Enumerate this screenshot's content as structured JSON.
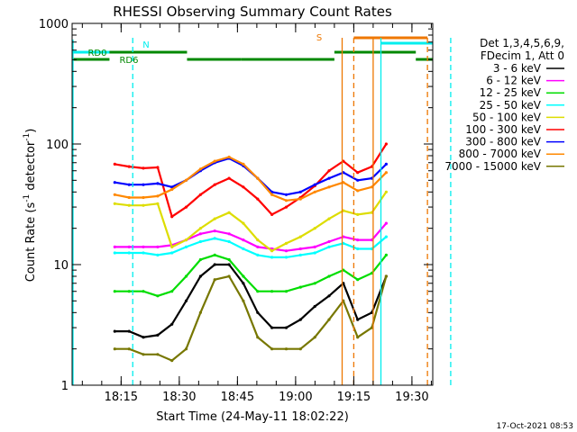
{
  "chart_data": {
    "type": "line",
    "title": "RHESSI Observing Summary Count Rates",
    "xlabel": "Start Time (24-May-11 18:02:22)",
    "ylabel_main": "Count Rate (s",
    "ylabel_sup1": "-1",
    "ylabel_mid": " detector",
    "ylabel_sup2": "-1",
    "ylabel_end": ")",
    "y_scale": "log",
    "ylim": [
      1,
      1000
    ],
    "xlim_minutes_after_start": [
      0,
      93
    ],
    "y_ticks": [
      {
        "value": 1,
        "label": "1"
      },
      {
        "value": 10,
        "label": "10"
      },
      {
        "value": 100,
        "label": "100"
      },
      {
        "value": 1000,
        "label": "1000"
      }
    ],
    "x_ticks": [
      {
        "time": "18:15",
        "label": "18:15"
      },
      {
        "time": "18:30",
        "label": "18:30"
      },
      {
        "time": "18:45",
        "label": "18:45"
      },
      {
        "time": "19:00",
        "label": "19:00"
      },
      {
        "time": "19:15",
        "label": "19:15"
      },
      {
        "time": "19:30",
        "label": "19:30"
      }
    ],
    "legend_header": [
      "Det 1,3,4,5,6,9,",
      "FDecim 1, Att 0"
    ],
    "legend_position": "right",
    "series": [
      {
        "name": "3 - 6 keV",
        "color": "#000000",
        "values": [
          2.8,
          2.8,
          2.5,
          2.6,
          3.2,
          5.0,
          8.0,
          10.0,
          10.0,
          7.0,
          4.0,
          3.0,
          3.0,
          3.5,
          4.5,
          5.5,
          7.0,
          3.5,
          4.0,
          8.0
        ]
      },
      {
        "name": "6 - 12 keV",
        "color": "#ff00ff",
        "values": [
          14.0,
          14.0,
          14.0,
          14.0,
          14.5,
          16.0,
          18.0,
          19.0,
          18.0,
          16.0,
          14.0,
          13.5,
          13.0,
          13.5,
          14.0,
          15.5,
          17.0,
          16.0,
          16.0,
          22.0
        ]
      },
      {
        "name": "12 - 25 keV",
        "color": "#00dd00",
        "values": [
          6.0,
          6.0,
          6.0,
          5.5,
          6.0,
          8.0,
          11.0,
          12.0,
          11.0,
          8.0,
          6.0,
          6.0,
          6.0,
          6.5,
          7.0,
          8.0,
          9.0,
          7.5,
          8.5,
          12.0
        ]
      },
      {
        "name": "25 - 50 keV",
        "color": "#00ffff",
        "values": [
          12.5,
          12.5,
          12.5,
          12.0,
          12.5,
          14.0,
          15.5,
          16.5,
          15.5,
          13.5,
          12.0,
          11.5,
          11.5,
          12.0,
          12.5,
          14.0,
          15.0,
          13.5,
          13.5,
          17.0
        ]
      },
      {
        "name": "50 - 100 keV",
        "color": "#dddd00",
        "values": [
          32.0,
          31.0,
          31.0,
          32.0,
          14.0,
          16.0,
          20.0,
          24.0,
          27.0,
          22.0,
          16.0,
          13.0,
          15.0,
          17.0,
          20.0,
          24.0,
          28.0,
          26.0,
          27.0,
          40.0
        ]
      },
      {
        "name": "100 - 300 keV",
        "color": "#ff0000",
        "values": [
          68.0,
          65.0,
          63.0,
          64.0,
          25.0,
          30.0,
          38.0,
          46.0,
          52.0,
          44.0,
          35.0,
          26.0,
          30.0,
          36.0,
          45.0,
          60.0,
          72.0,
          58.0,
          65.0,
          100.0
        ]
      },
      {
        "name": "300 - 800 keV",
        "color": "#0000ff",
        "values": [
          48.0,
          46.0,
          46.0,
          47.0,
          44.0,
          50.0,
          60.0,
          70.0,
          76.0,
          66.0,
          52.0,
          40.0,
          38.0,
          40.0,
          46.0,
          52.0,
          58.0,
          50.0,
          52.0,
          68.0
        ]
      },
      {
        "name": "800 - 7000 keV",
        "color": "#ff8800",
        "values": [
          38.0,
          36.0,
          36.0,
          37.0,
          42.0,
          50.0,
          62.0,
          72.0,
          78.0,
          68.0,
          52.0,
          38.0,
          34.0,
          35.0,
          40.0,
          44.0,
          48.0,
          41.0,
          44.0,
          58.0
        ]
      },
      {
        "name": "7000 - 15000 keV",
        "color": "#777700",
        "values": [
          2.0,
          2.0,
          1.8,
          1.8,
          1.6,
          2.0,
          4.0,
          7.5,
          8.0,
          5.0,
          2.5,
          2.0,
          2.0,
          2.0,
          2.5,
          3.5,
          5.0,
          2.5,
          3.0,
          8.0
        ]
      }
    ],
    "data_x_start_minutes": 11,
    "data_x_end_minutes": 81,
    "flags": [
      {
        "label": "RD0",
        "color": "#008800"
      },
      {
        "label": "RD6",
        "color": "#008800"
      },
      {
        "label": "N",
        "color": "#00eeee"
      },
      {
        "label": "S",
        "color": "#ee7700"
      }
    ],
    "footer_date": "17-Oct-2021 08:53"
  }
}
